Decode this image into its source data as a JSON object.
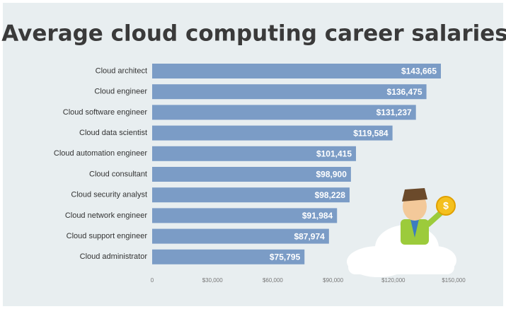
{
  "chart_data": {
    "type": "bar",
    "orientation": "horizontal",
    "title": "Average cloud computing career salaries",
    "categories": [
      "Cloud architect",
      "Cloud engineer",
      "Cloud software engineer",
      "Cloud data scientist",
      "Cloud automation engineer",
      "Cloud consultant",
      "Cloud security analyst",
      "Cloud network engineer",
      "Cloud support engineer",
      "Cloud administrator"
    ],
    "values": [
      143665,
      136475,
      131237,
      119584,
      101415,
      98900,
      98228,
      91984,
      87974,
      75795
    ],
    "value_labels": [
      "$143,665",
      "$136,475",
      "$131,237",
      "$119,584",
      "$101,415",
      "$98,900",
      "$98,228",
      "$91,984",
      "$87,974",
      "$75,795"
    ],
    "color": "#7b9cc6",
    "xlim": [
      0,
      150000
    ],
    "xticks": [
      0,
      {
        "value": 30000,
        "label": "$30,000"
      },
      {
        "value": 60000,
        "label": "$60,000"
      },
      {
        "value": 90000,
        "label": "$90,000"
      },
      {
        "value": 120000,
        "label": "$120,000"
      },
      {
        "value": 150000,
        "label": "$150,000"
      }
    ],
    "grid": false
  }
}
